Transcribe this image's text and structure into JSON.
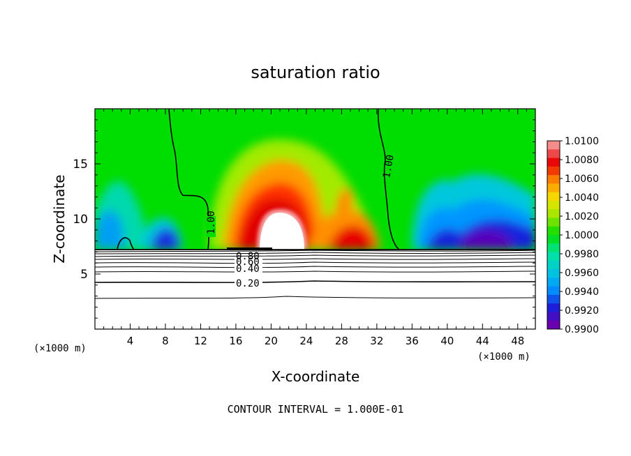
{
  "chart_data": {
    "type": "heatmap",
    "title": "saturation ratio",
    "xlabel": "X-coordinate",
    "ylabel": "Z-coordinate",
    "x_unit_left": "(×1000 m)",
    "x_unit_right": "(×1000 m)",
    "xlim": [
      0,
      50
    ],
    "ylim": [
      0,
      20
    ],
    "x_ticks": [
      4,
      8,
      12,
      16,
      20,
      24,
      28,
      32,
      36,
      40,
      44,
      48
    ],
    "y_ticks": [
      5,
      10,
      15
    ],
    "footer": "CONTOUR INTERVAL = 1.000E-01",
    "colorbar": {
      "ticks": [
        "1.0100",
        "1.0080",
        "1.0060",
        "1.0040",
        "1.0020",
        "1.0000",
        "0.9980",
        "0.9960",
        "0.9940",
        "0.9920",
        "0.9900"
      ],
      "colors": [
        "#f48c8c",
        "#e80000",
        "#ff8a00",
        "#f4e400",
        "#9ae600",
        "#00dd00",
        "#00e6a0",
        "#00c8dc",
        "#0096ff",
        "#1820dc",
        "#6a00b0"
      ]
    },
    "contour_labels": [
      {
        "text": "1.00",
        "x": 12.8,
        "z": 9.6,
        "rotate": -90
      },
      {
        "text": "1.00",
        "x": 32.8,
        "z": 15.2,
        "rotate": -78
      },
      {
        "text": "0.80",
        "x": 17.6,
        "z": 6.6,
        "rotate": 0
      },
      {
        "text": "0.60",
        "x": 17.6,
        "z": 6.0,
        "rotate": 0
      },
      {
        "text": "0.40",
        "x": 17.6,
        "z": 5.4,
        "rotate": 0
      },
      {
        "text": "0.20",
        "x": 17.6,
        "z": 4.2,
        "rotate": 0
      }
    ],
    "field_regions": [
      {
        "level": 1.0,
        "desc": "background above cloud base"
      },
      {
        "level": 1.01,
        "center_x": 20.5,
        "center_z": 11.0
      },
      {
        "level": 1.005,
        "center_x": 29.5,
        "center_z": 9.8
      },
      {
        "level": 0.992,
        "center_x": 43.0,
        "center_z": 9.5
      },
      {
        "level": 0.996,
        "center_x": 6.0,
        "center_z": 9.5
      }
    ]
  }
}
